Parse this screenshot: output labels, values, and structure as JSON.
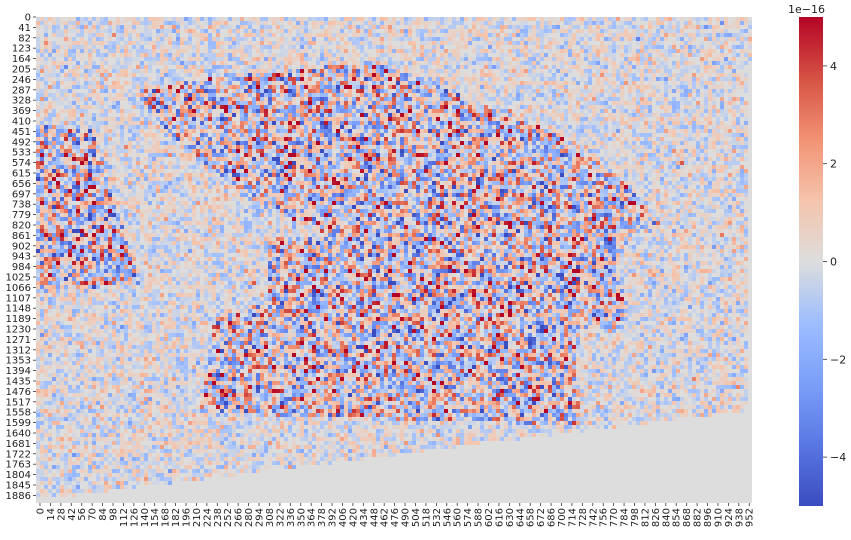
{
  "chart_data": {
    "type": "heatmap",
    "colormap": "coolwarm",
    "colors": {
      "negative_extreme": "#3b4cc0",
      "zero": "#dddddd",
      "positive_extreme": "#b40426"
    },
    "value_range": [
      -5e-16,
      5e-16
    ],
    "y_tick_labels": [
      "0",
      "41",
      "82",
      "123",
      "164",
      "205",
      "246",
      "287",
      "328",
      "369",
      "410",
      "451",
      "492",
      "533",
      "574",
      "615",
      "656",
      "697",
      "738",
      "779",
      "820",
      "861",
      "902",
      "943",
      "984",
      "1025",
      "1066",
      "1107",
      "1148",
      "1189",
      "1230",
      "1271",
      "1312",
      "1353",
      "1394",
      "1435",
      "1476",
      "1517",
      "1558",
      "1599",
      "1640",
      "1681",
      "1722",
      "1763",
      "1804",
      "1845",
      "1886"
    ],
    "x_tick_labels": [
      "0",
      "14",
      "28",
      "42",
      "56",
      "70",
      "84",
      "98",
      "112",
      "126",
      "140",
      "154",
      "168",
      "182",
      "196",
      "210",
      "224",
      "238",
      "252",
      "266",
      "280",
      "294",
      "308",
      "322",
      "336",
      "350",
      "364",
      "378",
      "392",
      "406",
      "420",
      "434",
      "448",
      "462",
      "476",
      "490",
      "504",
      "518",
      "532",
      "546",
      "560",
      "574",
      "588",
      "602",
      "616",
      "630",
      "644",
      "658",
      "672",
      "686",
      "700",
      "714",
      "728",
      "742",
      "756",
      "770",
      "784",
      "798",
      "812",
      "826",
      "840",
      "854",
      "868",
      "882",
      "896",
      "910",
      "924",
      "938",
      "952"
    ],
    "colorbar": {
      "exponent_label": "1e−16",
      "tick_values": [
        4,
        2,
        0,
        -2,
        -4
      ],
      "tick_labels": [
        "4",
        "2",
        "0",
        "−2",
        "−4"
      ],
      "range": [
        -5,
        5
      ]
    }
  }
}
